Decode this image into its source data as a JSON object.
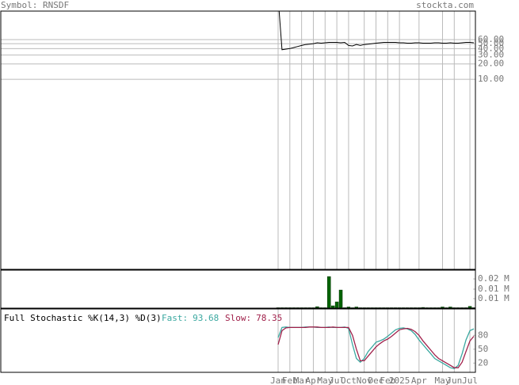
{
  "header": {
    "symbol": "Symbol: RNSDF",
    "site": "stockta.com"
  },
  "chart_data": [
    {
      "type": "line",
      "log_scale": true,
      "grid": true,
      "xlim": [
        0,
        50
      ],
      "ylim": [
        0.0019,
        217
      ],
      "yticks": [
        {
          "value": 60,
          "label": "60.00"
        },
        {
          "value": 50,
          "label": "50.00"
        },
        {
          "value": 40,
          "label": "40.00"
        },
        {
          "value": 30,
          "label": "30.00"
        },
        {
          "value": 20,
          "label": "20.00"
        },
        {
          "value": 10,
          "label": "10.00"
        }
      ],
      "series": [
        {
          "color": "#000000",
          "values": [
            400,
            38,
            39,
            40,
            42,
            44,
            46,
            48,
            49,
            50,
            52,
            51,
            52,
            53,
            53,
            53,
            52,
            53,
            46,
            45,
            48,
            46,
            48,
            49,
            50,
            51,
            52,
            53,
            53,
            53,
            53,
            52,
            52,
            51,
            51,
            52,
            52,
            51,
            51,
            51,
            52,
            52,
            51,
            51,
            52,
            51,
            51,
            52,
            53,
            53,
            52
          ]
        }
      ]
    },
    {
      "type": "bar",
      "xlim": [
        0,
        50
      ],
      "ylim": [
        0,
        0.026
      ],
      "yticks": [
        {
          "value": 0.02,
          "label": "0.02 M"
        },
        {
          "value": 0.013,
          "label": "0.01 M"
        },
        {
          "value": 0.0065,
          "label": "0.01 M"
        }
      ],
      "series": [
        {
          "color": "#006400",
          "values": [
            0.0003,
            0.0003,
            0.0003,
            0.0003,
            0.0003,
            0.0003,
            0.0003,
            0.0003,
            0.0003,
            0.0003,
            0.001,
            0.0003,
            0.0003,
            0.0216,
            0.0016,
            0.0043,
            0.0124,
            0.0003,
            0.0008,
            0.0003,
            0.0008,
            0.0003,
            0.0003,
            0.0003,
            0.0003,
            0.0003,
            0.0003,
            0.0003,
            0.0003,
            0.0003,
            0.0003,
            0.0003,
            0.0003,
            0.0003,
            0.0003,
            0.0003,
            0.0003,
            0.0005,
            0.0003,
            0.0003,
            0.0003,
            0.0003,
            0.0008,
            0.0003,
            0.0008,
            0.0003,
            0.0003,
            0.0003,
            0.0003,
            0.0012,
            0.0003
          ]
        }
      ]
    },
    {
      "type": "line",
      "title": "Full Stochastic %K(14,3) %D(3)",
      "grid": true,
      "xlim": [
        0,
        50
      ],
      "ylim": [
        0,
        137
      ],
      "yticks": [
        80,
        50,
        20
      ],
      "xticks": [
        {
          "value": 0,
          "label": "Jan"
        },
        {
          "value": 3,
          "label": "Feb"
        },
        {
          "value": 6,
          "label": "Mar"
        },
        {
          "value": 9,
          "label": "Apr"
        },
        {
          "value": 12,
          "label": "May"
        },
        {
          "value": 15,
          "label": "Jul"
        },
        {
          "value": 18,
          "label": "Oct"
        },
        {
          "value": 22,
          "label": "Nov"
        },
        {
          "value": 25,
          "label": "Dec"
        },
        {
          "value": 28,
          "label": "Feb"
        },
        {
          "value": 31,
          "label": "2025"
        },
        {
          "value": 36,
          "label": "Apr"
        },
        {
          "value": 42,
          "label": "May"
        },
        {
          "value": 45,
          "label": "Jun"
        },
        {
          "value": 49,
          "label": "Jul"
        }
      ],
      "series": [
        {
          "name": "Fast:",
          "last_value": "93.68",
          "color": "#3aa8a0",
          "values": [
            75,
            97,
            98,
            97,
            97,
            97,
            97,
            98,
            98,
            98,
            97,
            97,
            97,
            98,
            97,
            97,
            97,
            98,
            95,
            60,
            30,
            22,
            30,
            45,
            55,
            65,
            68,
            72,
            78,
            85,
            92,
            95,
            96,
            94,
            90,
            82,
            70,
            60,
            50,
            40,
            30,
            25,
            20,
            15,
            10,
            8,
            15,
            40,
            70,
            90,
            94
          ]
        },
        {
          "name": "Slow:",
          "last_value": "78.35",
          "color": "#a0204a",
          "values": [
            60,
            90,
            96,
            97,
            97,
            97,
            97,
            97,
            98,
            98,
            98,
            97,
            97,
            97,
            98,
            97,
            97,
            97,
            97,
            80,
            50,
            25,
            25,
            35,
            45,
            55,
            62,
            68,
            72,
            78,
            85,
            92,
            94,
            95,
            93,
            88,
            80,
            68,
            58,
            48,
            38,
            30,
            25,
            20,
            15,
            10,
            10,
            22,
            45,
            68,
            78
          ]
        }
      ]
    }
  ]
}
